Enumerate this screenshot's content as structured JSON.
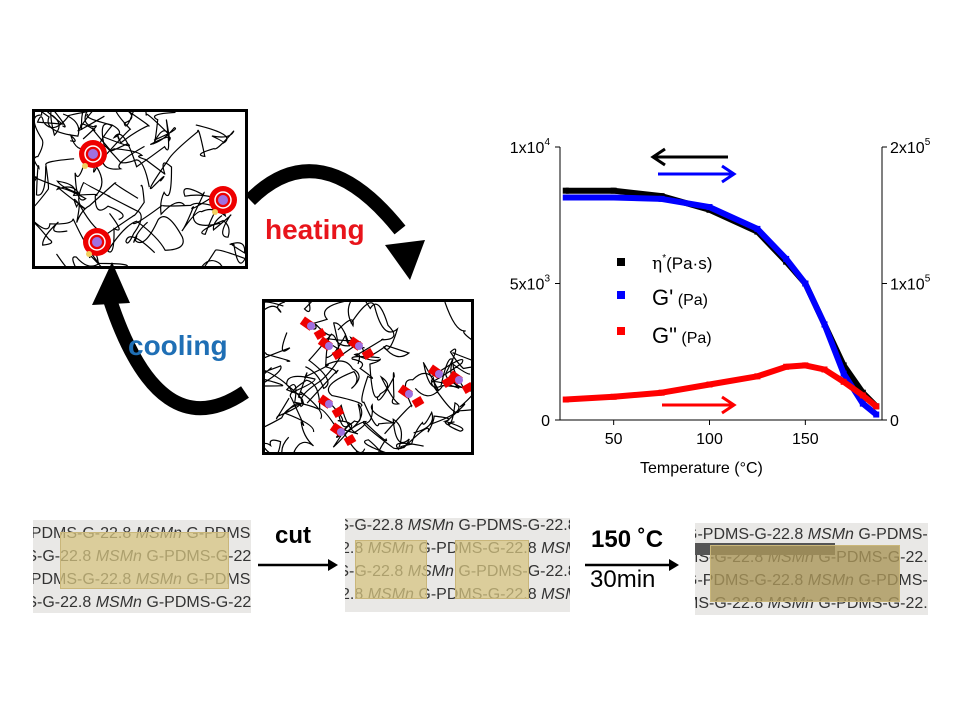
{
  "diagram": {
    "heating_label": "heating",
    "cooling_label": "cooling",
    "heating_color": "#e8141b",
    "cooling_color": "#1f6fb5"
  },
  "process": {
    "step1_label": "cut",
    "step2_temp": "150 ˚C",
    "step2_time": "30min",
    "photo_text": [
      "G-PDMS-G-22.8 ",
      "MSMn",
      " G-PDMS-G-22.8 ",
      "MSMn",
      " G-PDMS-G-22.8 ",
      "MSMn"
    ]
  },
  "chart_data": {
    "type": "line",
    "xlabel": "Temperature (°C)",
    "xlabel_main": "Temperature (",
    "xlabel_unit": "o",
    "xlabel_end": "C)",
    "x_ticks": [
      50,
      100,
      150
    ],
    "xlim": [
      22,
      190
    ],
    "left_axis": {
      "ticks": [
        "0",
        "5x10",
        "1x10"
      ],
      "tick_exp": [
        "",
        "3",
        "4"
      ],
      "values": [
        0,
        5000,
        10000
      ],
      "ylim": [
        0,
        10000
      ]
    },
    "right_axis": {
      "ticks": [
        "0",
        "1x10",
        "2x10"
      ],
      "tick_exp": [
        "",
        "5",
        "5"
      ],
      "values": [
        0,
        100000,
        200000
      ],
      "ylim": [
        0,
        200000
      ]
    },
    "legend_placement": "center-left",
    "series": [
      {
        "name": "η*(Pa·s)",
        "legend_main": "η",
        "legend_sup": "*",
        "legend_unit": "(Pa·s)",
        "color": "#000000",
        "axis": "left",
        "x": [
          25,
          50,
          75,
          100,
          125,
          140,
          150,
          160,
          170,
          180,
          187
        ],
        "y": [
          8400,
          8400,
          8200,
          7700,
          6900,
          5800,
          5000,
          3500,
          2000,
          1000,
          500
        ]
      },
      {
        "name": "G' (Pa)",
        "legend_main": "G'",
        "legend_sup": "",
        "legend_unit": " (Pa)",
        "color": "#0000ff",
        "axis": "right",
        "x": [
          25,
          50,
          75,
          100,
          125,
          140,
          150,
          160,
          170,
          180,
          187
        ],
        "y": [
          163000,
          163000,
          162000,
          156000,
          140000,
          118000,
          100000,
          70000,
          34000,
          12000,
          4000
        ]
      },
      {
        "name": "G\" (Pa)",
        "legend_main": "G\"",
        "legend_sup": "",
        "legend_unit": " (Pa)",
        "color": "#ff0000",
        "axis": "right",
        "x": [
          25,
          50,
          75,
          100,
          125,
          140,
          150,
          160,
          170,
          180,
          187
        ],
        "y": [
          15000,
          17000,
          20000,
          26000,
          32000,
          39000,
          40000,
          37000,
          28000,
          18000,
          10000
        ]
      }
    ],
    "annotations": [
      {
        "type": "arrow",
        "direction": "left",
        "color": "#000000"
      },
      {
        "type": "arrow",
        "direction": "right",
        "color": "#0000ff"
      },
      {
        "type": "arrow",
        "direction": "right",
        "color": "#ff0000"
      }
    ]
  }
}
